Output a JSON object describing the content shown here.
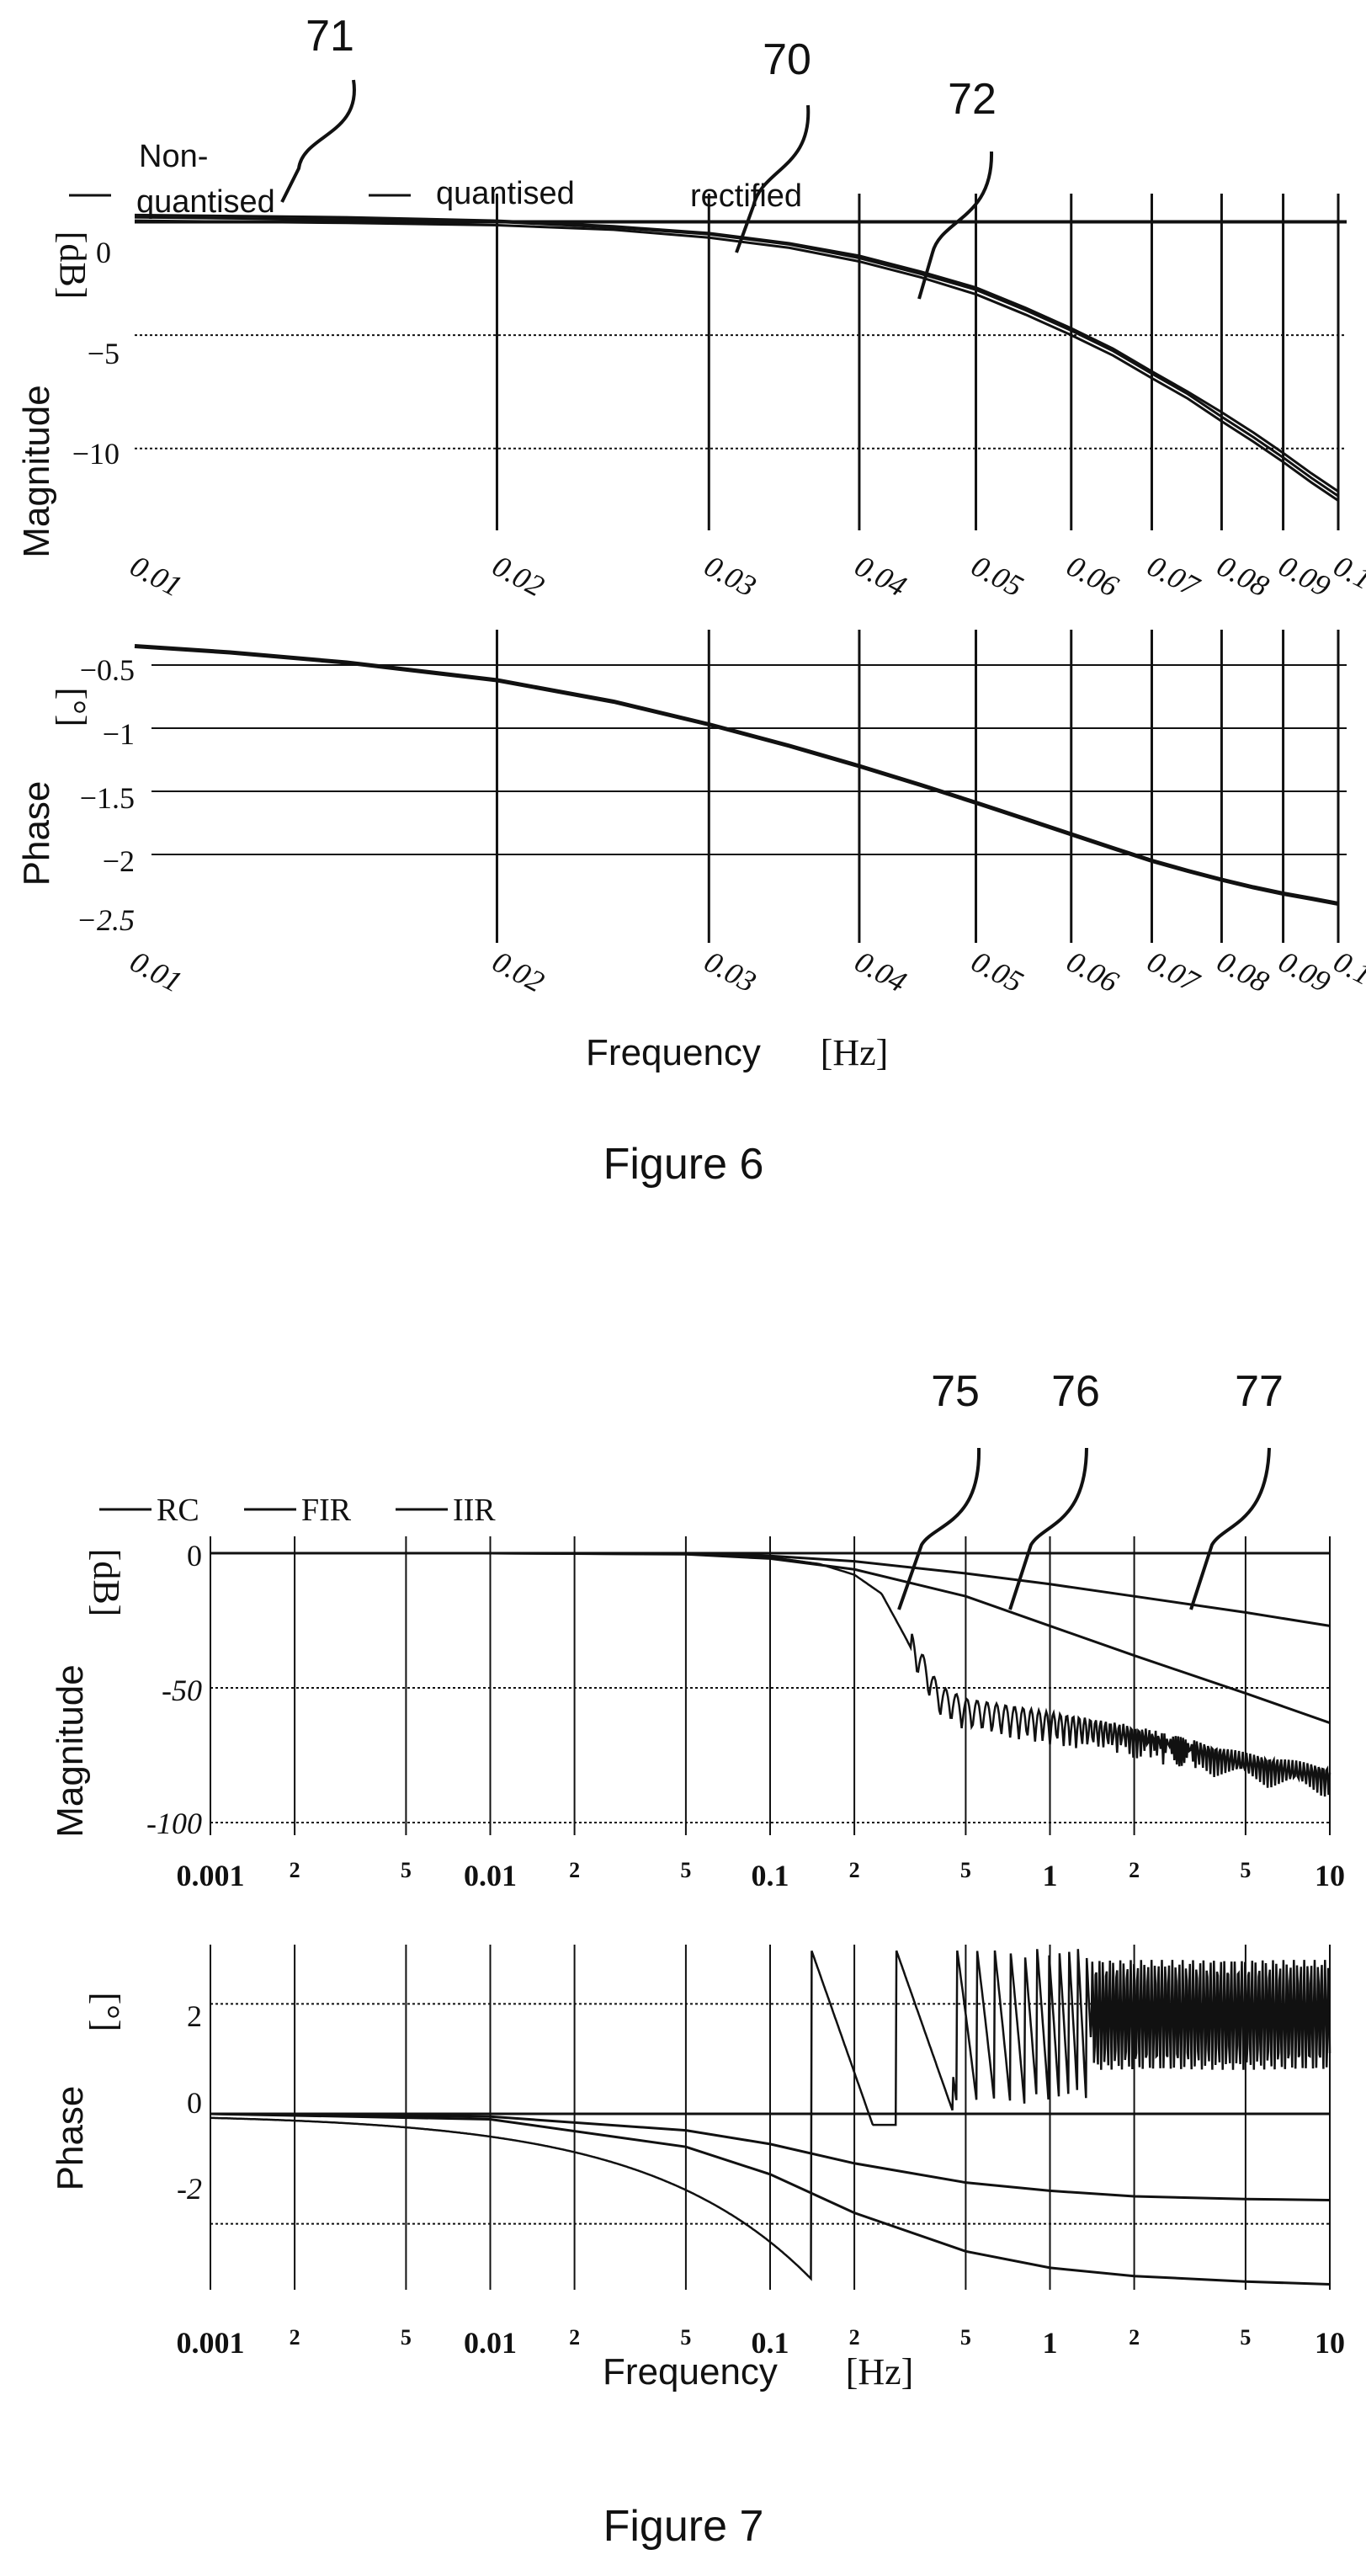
{
  "figure6": {
    "caption": "Figure 6",
    "refs": {
      "a": "71",
      "b": "70",
      "c": "72"
    },
    "legend": {
      "a_line1": "Non-",
      "a_line2": "quantised",
      "b": "quantised",
      "c": "rectified"
    },
    "magnitude": {
      "ylabel": "Magnitude",
      "yunit": "[dB]",
      "yticks": [
        "0",
        "−5",
        "−10"
      ],
      "xticks": [
        "0.01",
        "0.02",
        "0.03",
        "0.04",
        "0.05",
        "0.06",
        "0.07",
        "0.08",
        "0.09",
        "0.1"
      ]
    },
    "phase": {
      "ylabel": "Phase",
      "yunit": "[°]",
      "yticks": [
        "−0.5",
        "−1",
        "−1.5",
        "−2",
        "−2.5"
      ],
      "xticks": [
        "0.01",
        "0.02",
        "0.03",
        "0.04",
        "0.05",
        "0.06",
        "0.07",
        "0.08",
        "0.09",
        "0.1"
      ]
    },
    "xlabel": "Frequency",
    "xunit": "[Hz]"
  },
  "figure7": {
    "caption": "Figure 7",
    "refs": {
      "a": "75",
      "b": "76",
      "c": "77"
    },
    "legend": {
      "a": "RC",
      "b": "FIR",
      "c": "IIR"
    },
    "magnitude": {
      "ylabel": "Magnitude",
      "yunit": "[dB]",
      "yticks": [
        "0",
        "-50",
        "-100"
      ],
      "xticks_major": [
        "0.001",
        "0.01",
        "0.1",
        "1",
        "10"
      ],
      "xticks_minor": [
        "2",
        "5",
        "2",
        "5",
        "2",
        "5",
        "2",
        "5"
      ]
    },
    "phase": {
      "ylabel": "Phase",
      "yunit": "[°]",
      "yticks": [
        "2",
        "0",
        "-2"
      ],
      "xticks_major": [
        "0.001",
        "0.01",
        "0.1",
        "1",
        "10"
      ],
      "xticks_minor": [
        "2",
        "5",
        "2",
        "5",
        "2",
        "5",
        "2",
        "5"
      ]
    },
    "xlabel": "Frequency",
    "xunit": "[Hz]"
  },
  "chart_data": [
    {
      "type": "line",
      "figure": "Figure 6",
      "panel": "magnitude",
      "xscale": "log",
      "xlim": [
        0.01,
        0.1
      ],
      "ylim": [
        -12.5,
        0.5
      ],
      "ylabel": "Magnitude [dB]",
      "series": [
        {
          "name": "Non-quantised",
          "x": [
            0.01,
            0.015,
            0.02,
            0.025,
            0.03,
            0.035,
            0.04,
            0.045,
            0.05,
            0.055,
            0.06,
            0.065,
            0.07,
            0.075,
            0.08,
            0.085,
            0.09,
            0.095,
            0.1
          ],
          "y": [
            0.2,
            0.1,
            0.0,
            -0.25,
            -0.55,
            -1.0,
            -1.6,
            -2.3,
            -3.0,
            -3.9,
            -4.8,
            -5.7,
            -6.7,
            -7.6,
            -8.6,
            -9.5,
            -10.4,
            -11.3,
            -12.1
          ]
        },
        {
          "name": "quantised",
          "x": [
            0.01,
            0.015,
            0.02,
            0.025,
            0.03,
            0.035,
            0.04,
            0.045,
            0.05,
            0.055,
            0.06,
            0.065,
            0.07,
            0.075,
            0.08,
            0.085,
            0.09,
            0.095,
            0.1
          ],
          "y": [
            0.05,
            -0.05,
            -0.15,
            -0.35,
            -0.7,
            -1.15,
            -1.75,
            -2.45,
            -3.2,
            -4.1,
            -5.0,
            -5.9,
            -6.9,
            -7.8,
            -8.8,
            -9.7,
            -10.6,
            -11.5,
            -12.3
          ]
        },
        {
          "name": "rectified",
          "x": [
            0.01,
            0.015,
            0.02,
            0.025,
            0.03,
            0.035,
            0.04,
            0.045,
            0.05,
            0.055,
            0.06,
            0.065,
            0.07,
            0.075,
            0.08,
            0.085,
            0.09,
            0.095,
            0.1
          ],
          "y": [
            0.3,
            0.2,
            0.05,
            -0.2,
            -0.5,
            -0.95,
            -1.5,
            -2.2,
            -2.9,
            -3.8,
            -4.7,
            -5.6,
            -6.6,
            -7.5,
            -8.4,
            -9.3,
            -10.2,
            -11.1,
            -11.9
          ]
        }
      ]
    },
    {
      "type": "line",
      "figure": "Figure 6",
      "panel": "phase",
      "xscale": "log",
      "xlim": [
        0.01,
        0.1
      ],
      "ylim": [
        -2.5,
        -0.3
      ],
      "ylabel": "Phase [°]",
      "xlabel": "Frequency [Hz]",
      "series": [
        {
          "x": [
            0.01,
            0.012,
            0.015,
            0.02,
            0.025,
            0.03,
            0.035,
            0.04,
            0.045,
            0.05,
            0.055,
            0.06,
            0.065,
            0.07,
            0.075,
            0.08,
            0.085,
            0.09,
            0.095,
            0.1
          ],
          "y": [
            -0.35,
            -0.4,
            -0.48,
            -0.62,
            -0.79,
            -0.97,
            -1.14,
            -1.3,
            -1.45,
            -1.59,
            -1.72,
            -1.84,
            -1.95,
            -2.05,
            -2.13,
            -2.2,
            -2.26,
            -2.31,
            -2.35,
            -2.39
          ]
        }
      ]
    },
    {
      "type": "line",
      "figure": "Figure 7",
      "panel": "magnitude",
      "xscale": "log",
      "xlim": [
        0.001,
        10
      ],
      "ylim": [
        -100,
        5
      ],
      "ylabel": "Magnitude [dB]",
      "series": [
        {
          "name": "RC",
          "x": [
            0.001,
            0.01,
            0.05,
            0.1,
            0.2,
            0.5,
            1,
            2,
            5,
            10
          ],
          "y": [
            0,
            0,
            -0.3,
            -1,
            -3,
            -7.5,
            -11.5,
            -16,
            -22,
            -27
          ]
        },
        {
          "name": "FIR",
          "x": [
            0.001,
            0.01,
            0.05,
            0.1,
            0.15,
            0.2,
            0.25,
            0.3,
            0.4,
            0.5,
            1,
            2,
            5,
            10
          ],
          "y": [
            0,
            0,
            -0.3,
            -1.5,
            -4,
            -8,
            -15,
            -30,
            -55,
            -60,
            -65,
            -70,
            -80,
            -85
          ]
        },
        {
          "name": "IIR",
          "x": [
            0.001,
            0.01,
            0.05,
            0.1,
            0.2,
            0.5,
            1,
            2,
            5,
            10
          ],
          "y": [
            0,
            0,
            -0.4,
            -2,
            -6,
            -16,
            -27,
            -38,
            -52,
            -63
          ]
        }
      ]
    },
    {
      "type": "line",
      "figure": "Figure 7",
      "panel": "phase",
      "xscale": "log",
      "xlim": [
        0.001,
        10
      ],
      "ylim": [
        -3.2,
        3.2
      ],
      "ylabel": "Phase [°]",
      "xlabel": "Frequency [Hz]",
      "series": [
        {
          "name": "RC",
          "x": [
            0.001,
            0.01,
            0.05,
            0.1,
            0.2,
            0.5,
            1,
            2,
            5,
            10
          ],
          "y": [
            0,
            -0.05,
            -0.3,
            -0.55,
            -0.9,
            -1.25,
            -1.4,
            -1.5,
            -1.55,
            -1.57
          ]
        },
        {
          "name": "IIR",
          "x": [
            0.001,
            0.01,
            0.05,
            0.1,
            0.2,
            0.5,
            1,
            2,
            5,
            10
          ],
          "y": [
            0,
            -0.1,
            -0.6,
            -1.1,
            -1.8,
            -2.5,
            -2.8,
            -2.95,
            -3.05,
            -3.1
          ]
        },
        {
          "name": "FIR",
          "x": [
            0.001,
            0.01,
            0.05,
            0.1,
            0.13,
            0.14,
            0.2,
            0.3,
            0.32,
            0.4,
            0.45,
            0.5,
            1,
            2,
            5,
            10
          ],
          "y": [
            0,
            -0.2,
            -1.4,
            -2.6,
            -3.0,
            3.0,
            1.5,
            -1.0,
            1.9,
            0.3,
            -0.1,
            2.6,
            2.0,
            1.8,
            1.6,
            1.8
          ]
        }
      ]
    }
  ]
}
